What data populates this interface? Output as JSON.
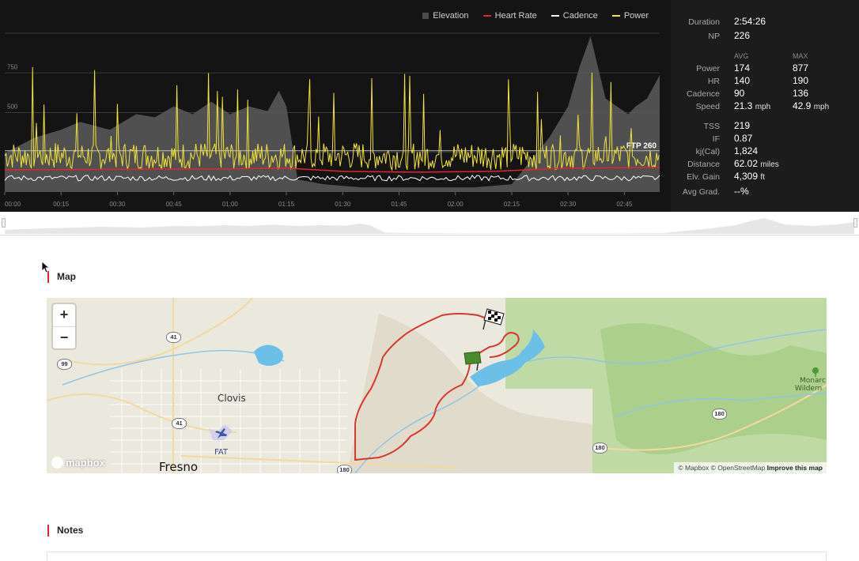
{
  "chart": {
    "legend": [
      {
        "label": "Elevation",
        "color": "#4a4a4a",
        "kind": "box"
      },
      {
        "label": "Heart Rate",
        "color": "#e0262b",
        "kind": "line"
      },
      {
        "label": "Cadence",
        "color": "#ffffff",
        "kind": "line"
      },
      {
        "label": "Power",
        "color": "#f2e33a",
        "kind": "line"
      }
    ],
    "ftp_label": "FTP 260"
  },
  "chart_data": {
    "type": "line",
    "title": "",
    "y_tick_labels": [
      "500",
      "750"
    ],
    "ylim": [
      0,
      1000
    ],
    "ftp": 260,
    "x_tick_labels": [
      "00:00",
      "00:15",
      "00:30",
      "00:45",
      "01:00",
      "01:15",
      "01:30",
      "01:45",
      "02:00",
      "02:15",
      "02:30",
      "02:45"
    ],
    "x_minutes": [
      0,
      15,
      30,
      45,
      60,
      75,
      90,
      105,
      120,
      135,
      150,
      165
    ],
    "xlim_minutes": [
      0,
      174.4
    ],
    "series": [
      {
        "name": "Elevation",
        "x": [
          0,
          8,
          15,
          20,
          28,
          35,
          40,
          45,
          50,
          55,
          60,
          65,
          70,
          73,
          75,
          78,
          85,
          95,
          105,
          115,
          125,
          135,
          140,
          145,
          150,
          153,
          156,
          158,
          160,
          163,
          166,
          168,
          171,
          174.4
        ],
        "values": [
          0.25,
          0.35,
          0.4,
          0.45,
          0.4,
          0.5,
          0.48,
          0.55,
          0.5,
          0.58,
          0.5,
          0.55,
          0.52,
          0.65,
          0.55,
          0.08,
          0.05,
          0.03,
          0.03,
          0.03,
          0.03,
          0.05,
          0.2,
          0.35,
          0.55,
          0.8,
          1.0,
          0.8,
          0.6,
          0.55,
          0.5,
          0.55,
          0.6,
          0.75
        ]
      },
      {
        "name": "Heart Rate",
        "x": [
          0,
          20,
          40,
          60,
          75,
          90,
          110,
          130,
          150,
          174.4
        ],
        "values": [
          140,
          142,
          145,
          145,
          150,
          130,
          125,
          130,
          150,
          155
        ]
      },
      {
        "name": "Cadence",
        "x": [
          0,
          174.4
        ],
        "values": [
          90,
          90
        ]
      },
      {
        "name": "Power",
        "x": [
          0,
          174.4
        ],
        "values": [
          174,
          174
        ]
      }
    ]
  },
  "stats": {
    "duration_label": "Duration",
    "duration_value": "2:54:26",
    "np_label": "NP",
    "np_value": "226",
    "avg_header": "AVG",
    "max_header": "MAX",
    "power_label": "Power",
    "power_avg": "174",
    "power_max": "877",
    "hr_label": "HR",
    "hr_avg": "140",
    "hr_max": "190",
    "cadence_label": "Cadence",
    "cadence_avg": "90",
    "cadence_max": "136",
    "speed_label": "Speed",
    "speed_avg": "21.3",
    "speed_max": "42.9",
    "speed_unit": "mph",
    "tss_label": "TSS",
    "tss_value": "219",
    "if_label": "IF",
    "if_value": "0.87",
    "kj_label": "kj(Cal)",
    "kj_value": "1,824",
    "distance_label": "Distance",
    "distance_value": "62.02",
    "distance_unit": "miles",
    "elv_label": "Elv. Gain",
    "elv_value": "4,309",
    "elv_unit": "ft",
    "grad_label": "Avg Grad.",
    "grad_value": "--%"
  },
  "sections": {
    "map_title": "Map",
    "notes_title": "Notes"
  },
  "map": {
    "zoom_in": "+",
    "zoom_out": "−",
    "places": {
      "clovis": "Clovis",
      "fresno": "Fresno",
      "fat": "FAT",
      "monarch": "Monarc",
      "wilderness": "Wildern"
    },
    "shields": {
      "r41a": "41",
      "r99": "99",
      "r41b": "41",
      "r180a": "180",
      "r180b": "180",
      "r180c": "180"
    },
    "logo": "mapbox",
    "attribution": "© Mapbox © OpenStreetMap",
    "improve": "Improve this map",
    "route_color": "#d9382f",
    "water_color": "#6cc0e8",
    "park_color": "#a9cf8a"
  }
}
